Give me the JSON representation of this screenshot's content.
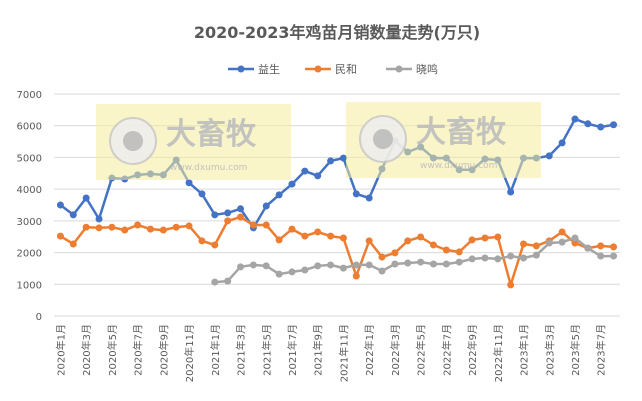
{
  "chart_data": {
    "type": "line",
    "title": "2020-2023年鸡苗月销数量走势(万只)",
    "xlabel": "",
    "ylabel": "",
    "ylim": [
      0,
      7000
    ],
    "yticks": [
      0,
      1000,
      2000,
      3000,
      4000,
      5000,
      6000,
      7000
    ],
    "grid": true,
    "legend_position": "top",
    "categories": [
      "2020年1月",
      "2020年2月",
      "2020年3月",
      "2020年4月",
      "2020年5月",
      "2020年6月",
      "2020年7月",
      "2020年8月",
      "2020年9月",
      "2020年10月",
      "2020年11月",
      "2020年12月",
      "2021年1月",
      "2021年2月",
      "2021年3月",
      "2021年4月",
      "2021年5月",
      "2021年6月",
      "2021年7月",
      "2021年8月",
      "2021年9月",
      "2021年10月",
      "2021年11月",
      "2021年12月",
      "2022年1月",
      "2022年2月",
      "2022年3月",
      "2022年4月",
      "2022年5月",
      "2022年6月",
      "2022年7月",
      "2022年8月",
      "2022年9月",
      "2022年10月",
      "2022年11月",
      "2022年12月",
      "2023年1月",
      "2023年2月",
      "2023年3月",
      "2023年4月",
      "2023年5月",
      "2023年6月",
      "2023年7月",
      "2023年8月"
    ],
    "series": [
      {
        "name": "益生",
        "color": "#4472c4",
        "values": [
          3500,
          3190,
          3720,
          3060,
          4350,
          4320,
          4450,
          4480,
          4450,
          4920,
          4200,
          3850,
          3190,
          3250,
          3380,
          2780,
          3470,
          3820,
          4160,
          4570,
          4420,
          4890,
          4980,
          3850,
          3720,
          4640,
          5520,
          5170,
          5330,
          4980,
          4980,
          4610,
          4610,
          4950,
          4920,
          3910,
          4980,
          4980,
          5050,
          5460,
          6210,
          6060,
          5960,
          6030
        ]
      },
      {
        "name": "民和",
        "color": "#ed7d31",
        "values": [
          2520,
          2270,
          2800,
          2780,
          2800,
          2710,
          2870,
          2740,
          2710,
          2800,
          2840,
          2370,
          2240,
          3000,
          3120,
          2870,
          2870,
          2400,
          2740,
          2520,
          2650,
          2520,
          2460,
          1260,
          2370,
          1860,
          1990,
          2370,
          2490,
          2240,
          2080,
          2020,
          2400,
          2460,
          2490,
          980,
          2270,
          2210,
          2370,
          2650,
          2300,
          2140,
          2210,
          2180
        ]
      },
      {
        "name": "晓鸣",
        "color": "#a5a5a5",
        "values": [
          null,
          null,
          null,
          null,
          null,
          null,
          null,
          null,
          null,
          null,
          null,
          null,
          1070,
          1100,
          1550,
          1610,
          1580,
          1320,
          1390,
          1450,
          1580,
          1610,
          1510,
          1610,
          1610,
          1420,
          1640,
          1670,
          1700,
          1640,
          1640,
          1700,
          1800,
          1830,
          1800,
          1890,
          1830,
          1920,
          2300,
          2330,
          2460,
          2140,
          1890,
          1890
        ]
      }
    ]
  },
  "watermark": {
    "brand": "大畜牧",
    "url": "www.dxumu.com"
  }
}
